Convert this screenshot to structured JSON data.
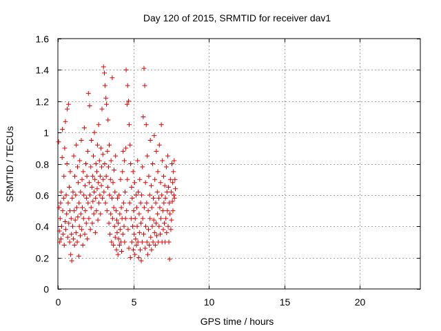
{
  "chart_data": {
    "type": "scatter",
    "title": "Day 120 of 2015, SRMTID for receiver dav1",
    "xlabel": "GPS time / hours",
    "ylabel": "SRMTID / TECUs",
    "xlim": [
      0,
      24
    ],
    "ylim": [
      0,
      1.6
    ],
    "xticks": [
      0,
      5,
      10,
      15,
      20
    ],
    "yticks": [
      0,
      0.2,
      0.4,
      0.6,
      0.8,
      1,
      1.2,
      1.4,
      1.6
    ],
    "ytick_labels": [
      "0",
      "0.2",
      "0.4",
      "0.6",
      "0.8",
      "1",
      "1.2",
      "1.4",
      "1.6"
    ],
    "grid": true,
    "marker": "+",
    "color": "#e00000",
    "series": [
      {
        "name": "SRMTID",
        "points": [
          [
            0.05,
            0.94
          ],
          [
            0.08,
            0.52
          ],
          [
            0.1,
            0.37
          ],
          [
            0.12,
            0.3
          ],
          [
            0.15,
            0.45
          ],
          [
            0.18,
            0.55
          ],
          [
            0.2,
            0.32
          ],
          [
            0.22,
            0.62
          ],
          [
            0.25,
            0.4
          ],
          [
            0.28,
            0.84
          ],
          [
            0.3,
            1.02
          ],
          [
            0.32,
            0.5
          ],
          [
            0.35,
            0.35
          ],
          [
            0.38,
            0.58
          ],
          [
            0.4,
            0.72
          ],
          [
            0.42,
            0.28
          ],
          [
            0.45,
            0.9
          ],
          [
            0.48,
            0.43
          ],
          [
            0.5,
            1.07
          ],
          [
            0.52,
            0.38
          ],
          [
            0.55,
            0.6
          ],
          [
            0.58,
            0.48
          ],
          [
            0.6,
            0.8
          ],
          [
            0.62,
            1.15
          ],
          [
            0.65,
            0.33
          ],
          [
            0.68,
            0.55
          ],
          [
            0.7,
            1.18
          ],
          [
            0.72,
            0.42
          ],
          [
            0.75,
            0.65
          ],
          [
            0.78,
            0.3
          ],
          [
            0.8,
            0.5
          ],
          [
            0.82,
            0.75
          ],
          [
            0.85,
            0.22
          ],
          [
            0.88,
            0.45
          ],
          [
            0.9,
            0.35
          ],
          [
            0.92,
            0.18
          ],
          [
            0.95,
            0.58
          ],
          [
            0.98,
            0.4
          ],
          [
            1.0,
            0.62
          ],
          [
            1.02,
            0.32
          ],
          [
            1.05,
            0.85
          ],
          [
            1.08,
            0.5
          ],
          [
            1.1,
            0.28
          ],
          [
            1.12,
            0.72
          ],
          [
            1.15,
            0.44
          ],
          [
            1.18,
            0.6
          ],
          [
            1.2,
            0.36
          ],
          [
            1.22,
            0.92
          ],
          [
            1.25,
            0.52
          ],
          [
            1.28,
            0.3
          ],
          [
            1.3,
            0.78
          ],
          [
            1.32,
            0.46
          ],
          [
            1.35,
            0.68
          ],
          [
            1.38,
            0.21
          ],
          [
            1.4,
            0.55
          ],
          [
            1.42,
            0.4
          ],
          [
            1.45,
            0.82
          ],
          [
            1.48,
            0.34
          ],
          [
            1.5,
            0.62
          ],
          [
            1.52,
            0.48
          ],
          [
            1.55,
            0.95
          ],
          [
            1.58,
            0.38
          ],
          [
            1.6,
            0.7
          ],
          [
            1.62,
            0.52
          ],
          [
            1.65,
            0.28
          ],
          [
            1.68,
            0.75
          ],
          [
            1.7,
            0.45
          ],
          [
            1.72,
            0.6
          ],
          [
            1.75,
            1.03
          ],
          [
            1.78,
            0.35
          ],
          [
            1.8,
            0.66
          ],
          [
            1.82,
            0.5
          ],
          [
            1.85,
            0.8
          ],
          [
            1.88,
            0.42
          ],
          [
            1.9,
            0.58
          ],
          [
            1.92,
            0.72
          ],
          [
            1.95,
            0.32
          ],
          [
            1.98,
            0.88
          ],
          [
            2.0,
            0.55
          ],
          [
            2.02,
            1.25
          ],
          [
            2.05,
            0.45
          ],
          [
            2.08,
            0.68
          ],
          [
            2.1,
            1.17
          ],
          [
            2.12,
            0.6
          ],
          [
            2.15,
            0.38
          ],
          [
            2.18,
            0.78
          ],
          [
            2.2,
            0.52
          ],
          [
            2.22,
            0.95
          ],
          [
            2.25,
            0.65
          ],
          [
            2.28,
            0.42
          ],
          [
            2.3,
            0.72
          ],
          [
            2.32,
            0.56
          ],
          [
            2.35,
            0.85
          ],
          [
            2.38,
            0.48
          ],
          [
            2.4,
            0.62
          ],
          [
            2.42,
            1.0
          ],
          [
            2.45,
            0.7
          ],
          [
            2.48,
            0.36
          ],
          [
            2.5,
            0.58
          ],
          [
            2.52,
            0.8
          ],
          [
            2.55,
            0.5
          ],
          [
            2.58,
            0.75
          ],
          [
            2.6,
            0.64
          ],
          [
            2.62,
            0.92
          ],
          [
            2.65,
            0.44
          ],
          [
            2.68,
            0.68
          ],
          [
            2.7,
            1.05
          ],
          [
            2.72,
            0.55
          ],
          [
            2.75,
            0.82
          ],
          [
            2.78,
            0.6
          ],
          [
            2.8,
            0.72
          ],
          [
            2.82,
            0.48
          ],
          [
            2.85,
            0.9
          ],
          [
            2.88,
            0.66
          ],
          [
            2.9,
            0.78
          ],
          [
            2.92,
            1.15
          ],
          [
            2.95,
            0.58
          ],
          [
            2.98,
            0.86
          ],
          [
            3.0,
            0.7
          ],
          [
            3.02,
            1.42
          ],
          [
            3.05,
            0.62
          ],
          [
            3.08,
            1.38
          ],
          [
            3.1,
            0.8
          ],
          [
            3.12,
            1.3
          ],
          [
            3.15,
            0.55
          ],
          [
            3.18,
            1.22
          ],
          [
            3.2,
            0.72
          ],
          [
            3.22,
            1.18
          ],
          [
            3.25,
            0.5
          ],
          [
            3.28,
            0.88
          ],
          [
            3.3,
            0.65
          ],
          [
            3.32,
            1.08
          ],
          [
            3.35,
            0.78
          ],
          [
            3.38,
            0.42
          ],
          [
            3.4,
            0.92
          ],
          [
            3.42,
            0.6
          ],
          [
            3.45,
            0.35
          ],
          [
            3.48,
            0.7
          ],
          [
            3.5,
            0.48
          ],
          [
            3.52,
            0.82
          ],
          [
            3.55,
            0.3
          ],
          [
            3.58,
            0.58
          ],
          [
            3.6,
            1.35
          ],
          [
            3.62,
            0.45
          ],
          [
            3.65,
            0.68
          ],
          [
            3.68,
            0.28
          ],
          [
            3.7,
            0.52
          ],
          [
            3.72,
            0.76
          ],
          [
            3.75,
            0.4
          ],
          [
            3.78,
            0.62
          ],
          [
            3.8,
            0.33
          ],
          [
            3.82,
            0.85
          ],
          [
            3.85,
            0.5
          ],
          [
            3.88,
            0.25
          ],
          [
            3.9,
            0.44
          ],
          [
            3.92,
            0.36
          ],
          [
            3.95,
            0.58
          ],
          [
            3.98,
            0.22
          ],
          [
            4.0,
            0.42
          ],
          [
            4.02,
            0.32
          ],
          [
            4.05,
            0.6
          ],
          [
            4.08,
            0.28
          ],
          [
            4.1,
            0.48
          ],
          [
            4.12,
            0.38
          ],
          [
            4.15,
            0.7
          ],
          [
            4.18,
            0.3
          ],
          [
            4.2,
            0.52
          ],
          [
            4.22,
            0.24
          ],
          [
            4.25,
            0.45
          ],
          [
            4.28,
            0.75
          ],
          [
            4.3,
            0.35
          ],
          [
            4.32,
            0.88
          ],
          [
            4.35,
            0.55
          ],
          [
            4.38,
            0.4
          ],
          [
            4.4,
            0.82
          ],
          [
            4.42,
            0.3
          ],
          [
            4.45,
            0.62
          ],
          [
            4.48,
            0.45
          ],
          [
            4.5,
            0.9
          ],
          [
            4.52,
            1.4
          ],
          [
            4.55,
            0.5
          ],
          [
            4.58,
            1.18
          ],
          [
            4.6,
            0.7
          ],
          [
            4.62,
            1.3
          ],
          [
            4.65,
            0.38
          ],
          [
            4.68,
            1.2
          ],
          [
            4.7,
            0.26
          ],
          [
            4.72,
            1.05
          ],
          [
            4.75,
            0.55
          ],
          [
            4.78,
            0.92
          ],
          [
            4.8,
            0.2
          ],
          [
            4.82,
            0.8
          ],
          [
            4.85,
            0.45
          ],
          [
            4.88,
            0.65
          ],
          [
            4.9,
            0.3
          ],
          [
            4.92,
            0.58
          ],
          [
            4.95,
            0.4
          ],
          [
            4.98,
            0.75
          ],
          [
            5.0,
            0.25
          ],
          [
            5.02,
            0.5
          ],
          [
            5.05,
            0.35
          ],
          [
            5.08,
            0.68
          ],
          [
            5.1,
            0.22
          ],
          [
            5.12,
            0.45
          ],
          [
            5.15,
            0.32
          ],
          [
            5.18,
            0.6
          ],
          [
            5.2,
            0.28
          ],
          [
            5.22,
            0.52
          ],
          [
            5.25,
            0.4
          ],
          [
            5.28,
            0.82
          ],
          [
            5.3,
            0.3
          ],
          [
            5.32,
            0.62
          ],
          [
            5.35,
            0.2
          ],
          [
            5.38,
            0.48
          ],
          [
            5.4,
            0.36
          ],
          [
            5.42,
            0.7
          ],
          [
            5.45,
            0.25
          ],
          [
            5.48,
            0.55
          ],
          [
            5.5,
            0.42
          ],
          [
            5.52,
            0.18
          ],
          [
            5.55,
            0.6
          ],
          [
            5.58,
            0.3
          ],
          [
            5.6,
            0.78
          ],
          [
            5.62,
            0.45
          ],
          [
            5.65,
            1.1
          ],
          [
            5.68,
            0.35
          ],
          [
            5.7,
            1.41
          ],
          [
            5.72,
            0.52
          ],
          [
            5.75,
            1.3
          ],
          [
            5.78,
            0.26
          ],
          [
            5.8,
            0.68
          ],
          [
            5.82,
            0.4
          ],
          [
            5.85,
            1.05
          ],
          [
            5.88,
            0.55
          ],
          [
            5.9,
            0.3
          ],
          [
            5.92,
            0.85
          ],
          [
            5.95,
            0.22
          ],
          [
            5.98,
            0.5
          ],
          [
            6.0,
            0.38
          ],
          [
            6.02,
            0.72
          ],
          [
            6.05,
            0.28
          ],
          [
            6.08,
            0.6
          ],
          [
            6.1,
            0.45
          ],
          [
            6.12,
            0.95
          ],
          [
            6.15,
            0.33
          ],
          [
            6.18,
            0.66
          ],
          [
            6.2,
            0.25
          ],
          [
            6.22,
            0.52
          ],
          [
            6.25,
            0.4
          ],
          [
            6.28,
            0.8
          ],
          [
            6.3,
            0.3
          ],
          [
            6.32,
            0.58
          ],
          [
            6.35,
            0.44
          ],
          [
            6.38,
            0.98
          ],
          [
            6.4,
            0.36
          ],
          [
            6.42,
            0.7
          ],
          [
            6.45,
            0.28
          ],
          [
            6.48,
            0.55
          ],
          [
            6.5,
            0.42
          ],
          [
            6.52,
            0.88
          ],
          [
            6.55,
            0.34
          ],
          [
            6.58,
            0.62
          ],
          [
            6.6,
            0.48
          ],
          [
            6.62,
            0.75
          ],
          [
            6.65,
            0.3
          ],
          [
            6.68,
            0.58
          ],
          [
            6.7,
            0.4
          ],
          [
            6.72,
            0.92
          ],
          [
            6.75,
            0.52
          ],
          [
            6.78,
            0.35
          ],
          [
            6.8,
            0.68
          ],
          [
            6.82,
            0.45
          ],
          [
            6.85,
            1.05
          ],
          [
            6.88,
            0.6
          ],
          [
            6.9,
            0.3
          ],
          [
            6.92,
            0.82
          ],
          [
            6.95,
            0.5
          ],
          [
            6.98,
            0.38
          ],
          [
            7.0,
            0.72
          ],
          [
            7.02,
            0.55
          ],
          [
            7.05,
            0.42
          ],
          [
            7.08,
            0.66
          ],
          [
            7.1,
            0.3
          ],
          [
            7.12,
            0.58
          ],
          [
            7.15,
            0.45
          ],
          [
            7.18,
            0.78
          ],
          [
            7.2,
            0.36
          ],
          [
            7.22,
            0.62
          ],
          [
            7.25,
            0.5
          ],
          [
            7.28,
            0.85
          ],
          [
            7.3,
            0.4
          ],
          [
            7.32,
            0.65
          ],
          [
            7.35,
            0.3
          ],
          [
            7.38,
            0.55
          ],
          [
            7.4,
            0.19
          ],
          [
            7.42,
            0.48
          ],
          [
            7.45,
            0.7
          ],
          [
            7.48,
            0.38
          ],
          [
            7.5,
            0.62
          ],
          [
            7.52,
            0.44
          ],
          [
            7.55,
            0.8
          ],
          [
            7.58,
            0.56
          ],
          [
            7.6,
            0.68
          ],
          [
            7.62,
            0.5
          ],
          [
            7.65,
            0.75
          ],
          [
            7.68,
            0.6
          ],
          [
            7.7,
            0.82
          ],
          [
            7.72,
            0.58
          ],
          [
            7.75,
            0.7
          ],
          [
            7.78,
            0.64
          ]
        ]
      }
    ]
  }
}
